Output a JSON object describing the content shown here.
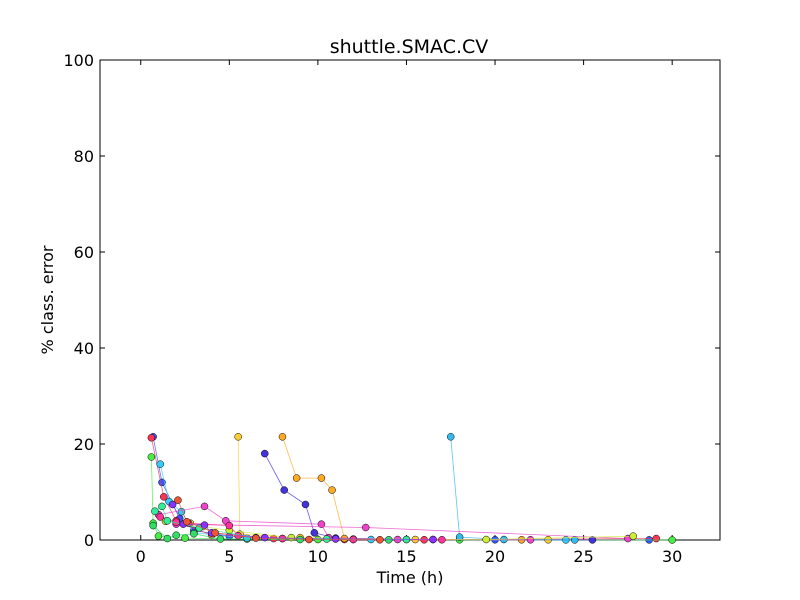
{
  "chart_data": {
    "type": "line",
    "title": "shuttle.SMAC.CV",
    "xlabel": "Time (h)",
    "ylabel": "% class. error",
    "xlim": [
      -2.3,
      32.7
    ],
    "ylim": [
      0,
      100
    ],
    "xticks": [
      0,
      5,
      10,
      15,
      20,
      25,
      30
    ],
    "yticks": [
      0,
      20,
      40,
      60,
      80,
      100
    ],
    "xtick_labels": [
      "0",
      "5",
      "10",
      "15",
      "20",
      "25",
      "30"
    ],
    "ytick_labels": [
      "0",
      "20",
      "40",
      "60",
      "80",
      "100"
    ],
    "grid": false,
    "legend": "none",
    "series": [
      {
        "color": "#3355ff",
        "points": [
          [
            0.7,
            21.5
          ],
          [
            1.2,
            12.0
          ],
          [
            2.2,
            4.5
          ],
          [
            3.0,
            2.0
          ],
          [
            5.0,
            0.8
          ],
          [
            8.0,
            0.3
          ],
          [
            12.0,
            0.1
          ],
          [
            20.0,
            0.05
          ],
          [
            28.7,
            0.02
          ]
        ]
      },
      {
        "color": "#ff3355",
        "points": [
          [
            0.6,
            21.3
          ],
          [
            1.3,
            9.0
          ],
          [
            2.0,
            4.0
          ],
          [
            4.0,
            1.0
          ],
          [
            7.5,
            0.3
          ],
          [
            11.5,
            0.1
          ],
          [
            16.0,
            0.05
          ],
          [
            29.1,
            0.3
          ]
        ]
      },
      {
        "color": "#44ee44",
        "points": [
          [
            0.6,
            17.3
          ],
          [
            0.7,
            3.5
          ],
          [
            1.0,
            0.8
          ],
          [
            2.5,
            0.4
          ],
          [
            6.0,
            0.2
          ],
          [
            10.0,
            0.1
          ],
          [
            18.0,
            0.05
          ],
          [
            30.0,
            0.0
          ]
        ]
      },
      {
        "color": "#33ccff",
        "points": [
          [
            1.1,
            15.8
          ],
          [
            1.6,
            8.0
          ],
          [
            2.3,
            5.9
          ],
          [
            3.0,
            1.5
          ],
          [
            6.0,
            0.4
          ],
          [
            13.0,
            0.1
          ],
          [
            24.0,
            0.02
          ]
        ]
      },
      {
        "color": "#ffcc33",
        "points": [
          [
            5.5,
            21.5
          ],
          [
            5.6,
            1.2
          ],
          [
            9.0,
            0.5
          ],
          [
            15.5,
            0.1
          ],
          [
            23.0,
            0.05
          ]
        ]
      },
      {
        "color": "#ffaa22",
        "points": [
          [
            8.0,
            21.5
          ],
          [
            8.8,
            12.9
          ],
          [
            10.2,
            12.9
          ],
          [
            10.8,
            10.4
          ],
          [
            11.5,
            0.3
          ],
          [
            16.5,
            0.1
          ],
          [
            21.5,
            0.05
          ]
        ]
      },
      {
        "color": "#4433dd",
        "points": [
          [
            7.0,
            18.0
          ],
          [
            8.1,
            10.4
          ],
          [
            9.3,
            7.4
          ],
          [
            9.8,
            1.5
          ],
          [
            11.0,
            0.4
          ],
          [
            15.0,
            0.1
          ],
          [
            25.5,
            0.02
          ]
        ]
      },
      {
        "color": "#33bbee",
        "points": [
          [
            17.5,
            21.5
          ],
          [
            18.0,
            0.6
          ],
          [
            20.5,
            0.1
          ],
          [
            24.5,
            0.02
          ]
        ]
      },
      {
        "color": "#ee44cc",
        "points": [
          [
            1.0,
            5.3
          ],
          [
            3.6,
            7.0
          ],
          [
            4.8,
            4.0
          ],
          [
            10.2,
            3.3
          ],
          [
            10.6,
            0.5
          ],
          [
            14.5,
            0.1
          ],
          [
            22.0,
            0.05
          ]
        ]
      },
      {
        "color": "#ee44cc",
        "points": [
          [
            2.0,
            3.3
          ],
          [
            12.7,
            2.6
          ],
          [
            27.5,
            0.3
          ]
        ]
      },
      {
        "color": "#ccee33",
        "points": [
          [
            1.4,
            3.9
          ],
          [
            2.8,
            3.5
          ],
          [
            3.5,
            2.8
          ],
          [
            5.0,
            2.0
          ],
          [
            8.5,
            0.5
          ],
          [
            12.0,
            0.2
          ],
          [
            19.5,
            0.1
          ],
          [
            27.8,
            0.8
          ]
        ]
      },
      {
        "color": "#ff3399",
        "points": [
          [
            1.1,
            4.8
          ],
          [
            2.0,
            3.7
          ],
          [
            2.7,
            3.5
          ],
          [
            5.0,
            3.0
          ],
          [
            5.5,
            0.9
          ],
          [
            8.0,
            0.3
          ],
          [
            12.0,
            0.1
          ],
          [
            17.0,
            0.05
          ]
        ]
      },
      {
        "color": "#33ee99",
        "points": [
          [
            0.8,
            6.0
          ],
          [
            1.2,
            7.0
          ],
          [
            1.5,
            4.0
          ],
          [
            3.3,
            2.5
          ],
          [
            6.5,
            0.5
          ],
          [
            10.5,
            0.2
          ],
          [
            15.0,
            0.1
          ]
        ]
      },
      {
        "color": "#33dd66",
        "points": [
          [
            0.7,
            3.0
          ],
          [
            1.5,
            0.3
          ],
          [
            2.0,
            1.0
          ],
          [
            3.0,
            1.3
          ],
          [
            4.5,
            0.2
          ],
          [
            9.0,
            0.1
          ],
          [
            14.0,
            0.05
          ]
        ]
      },
      {
        "color": "#8833ff",
        "points": [
          [
            1.8,
            7.4
          ],
          [
            2.4,
            3.3
          ],
          [
            3.6,
            3.1
          ],
          [
            4.0,
            1.5
          ],
          [
            7.0,
            0.5
          ],
          [
            11.0,
            0.2
          ],
          [
            16.5,
            0.1
          ]
        ]
      },
      {
        "color": "#ee5533",
        "points": [
          [
            2.1,
            8.3
          ],
          [
            2.6,
            3.8
          ],
          [
            4.2,
            1.5
          ],
          [
            6.5,
            0.4
          ],
          [
            9.5,
            0.1
          ],
          [
            13.5,
            0.05
          ]
        ]
      }
    ]
  }
}
